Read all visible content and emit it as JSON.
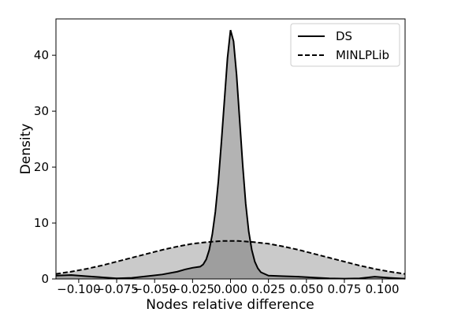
{
  "chart_data": {
    "type": "area",
    "title": "",
    "xlabel": "Nodes relative difference",
    "ylabel": "Density",
    "xlim": [
      -0.115,
      0.115
    ],
    "ylim": [
      0,
      46.5
    ],
    "x_ticks": [
      -0.1,
      -0.075,
      -0.05,
      -0.025,
      0.0,
      0.025,
      0.05,
      0.075,
      0.1
    ],
    "x_tick_labels": [
      "−0.100",
      "−0.075",
      "−0.050",
      "−0.025",
      "0.000",
      "0.025",
      "0.050",
      "0.075",
      "0.100"
    ],
    "y_ticks": [
      0,
      10,
      20,
      30,
      40
    ],
    "y_tick_labels": [
      "0",
      "10",
      "20",
      "30",
      "40"
    ],
    "grid": false,
    "legend_position": "top-right",
    "series": [
      {
        "name": "DS",
        "line_style": "solid",
        "fill_color": "#808080",
        "x": [
          -0.115,
          -0.105,
          -0.095,
          -0.085,
          -0.075,
          -0.065,
          -0.055,
          -0.045,
          -0.035,
          -0.03,
          -0.025,
          -0.02,
          -0.018,
          -0.016,
          -0.014,
          -0.012,
          -0.01,
          -0.008,
          -0.006,
          -0.004,
          -0.002,
          0.0,
          0.002,
          0.004,
          0.006,
          0.008,
          0.01,
          0.012,
          0.014,
          0.016,
          0.018,
          0.02,
          0.025,
          0.035,
          0.045,
          0.055,
          0.065,
          0.075,
          0.085,
          0.095,
          0.105,
          0.115
        ],
        "y": [
          0.6,
          0.7,
          0.5,
          0.3,
          0.1,
          0.2,
          0.5,
          0.8,
          1.3,
          1.7,
          2.0,
          2.2,
          2.6,
          3.5,
          5.2,
          8.0,
          12.0,
          17.5,
          24.5,
          32.0,
          39.5,
          44.5,
          42.5,
          36.5,
          28.5,
          20.5,
          13.5,
          8.5,
          5.2,
          3.1,
          1.9,
          1.2,
          0.6,
          0.5,
          0.4,
          0.25,
          0.1,
          0.05,
          0.1,
          0.4,
          0.2,
          0.05
        ]
      },
      {
        "name": "MINLPLib",
        "line_style": "dashed",
        "fill_color": "#a6a6a6",
        "x": [
          -0.115,
          -0.105,
          -0.095,
          -0.085,
          -0.075,
          -0.065,
          -0.055,
          -0.045,
          -0.035,
          -0.025,
          -0.015,
          -0.005,
          0.0,
          0.005,
          0.015,
          0.025,
          0.035,
          0.045,
          0.055,
          0.065,
          0.075,
          0.085,
          0.095,
          0.105,
          0.115
        ],
        "y": [
          0.9,
          1.3,
          1.8,
          2.4,
          3.1,
          3.8,
          4.5,
          5.2,
          5.8,
          6.3,
          6.6,
          6.8,
          6.8,
          6.8,
          6.6,
          6.3,
          5.8,
          5.2,
          4.5,
          3.8,
          3.1,
          2.4,
          1.8,
          1.3,
          0.9
        ]
      }
    ]
  }
}
